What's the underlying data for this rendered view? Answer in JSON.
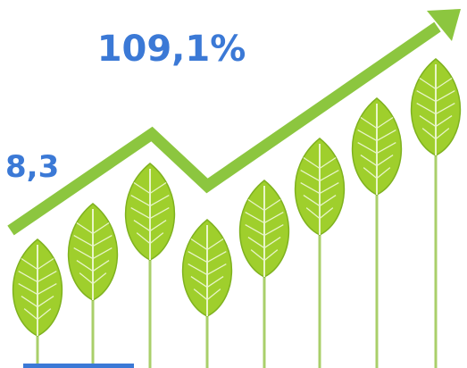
{
  "labels": {
    "headline": "109,1%",
    "start_value": "8,3"
  }
}
